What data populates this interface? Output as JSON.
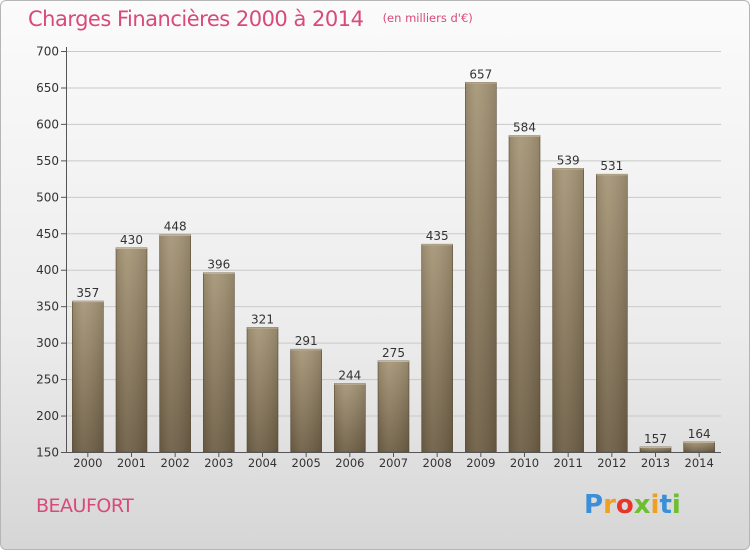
{
  "header": {
    "title": "Charges Financières 2000 à 2014",
    "subtitle": "(en milliers d'€)"
  },
  "footer": {
    "commune": "BEAUFORT",
    "logo_text": "Proxiti"
  },
  "colors": {
    "title": "#d9497a",
    "bar_top": "#a69677",
    "bar_bottom": "#6e5e45"
  },
  "chart_data": {
    "type": "bar",
    "title": "Charges Financières 2000 à 2014",
    "subtitle": "(en milliers d'€)",
    "categories": [
      "2000",
      "2001",
      "2002",
      "2003",
      "2004",
      "2005",
      "2006",
      "2007",
      "2008",
      "2009",
      "2010",
      "2011",
      "2012",
      "2013",
      "2014"
    ],
    "values": [
      357,
      430,
      448,
      396,
      321,
      291,
      244,
      275,
      435,
      657,
      584,
      539,
      531,
      157,
      164
    ],
    "ylim": [
      150,
      700
    ],
    "yticks": [
      150,
      200,
      250,
      300,
      350,
      400,
      450,
      500,
      550,
      600,
      650,
      700
    ],
    "grid": true,
    "xlabel": "",
    "ylabel": ""
  }
}
